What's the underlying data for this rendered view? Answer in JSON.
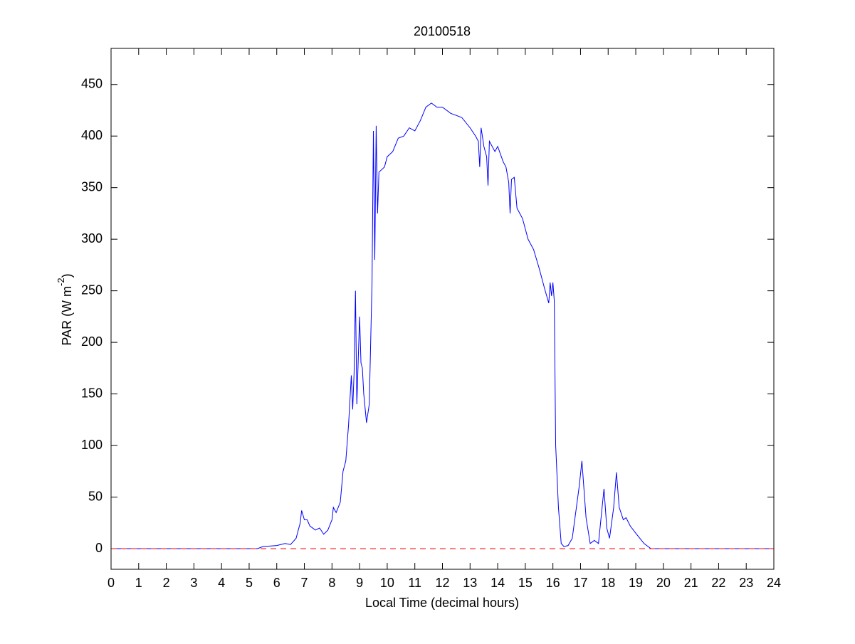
{
  "chart_data": {
    "type": "line",
    "title": "20100518",
    "xlabel": "Local Time (decimal hours)",
    "ylabel": [
      "PAR (W m",
      "-2",
      ")"
    ],
    "xlim": [
      0,
      24
    ],
    "ylim": [
      -20,
      485
    ],
    "xticks": [
      0,
      1,
      2,
      3,
      4,
      5,
      6,
      7,
      8,
      9,
      10,
      11,
      12,
      13,
      14,
      15,
      16,
      17,
      18,
      19,
      20,
      21,
      22,
      23,
      24
    ],
    "yticks": [
      0,
      50,
      100,
      150,
      200,
      250,
      300,
      350,
      400,
      450
    ],
    "box": true,
    "series": [
      {
        "color": "#0000ff",
        "dash": false,
        "x": [
          0,
          5.3,
          5.5,
          6,
          6.3,
          6.5,
          6.7,
          6.85,
          6.9,
          7.0,
          7.1,
          7.2,
          7.4,
          7.55,
          7.7,
          7.85,
          8.0,
          8.05,
          8.15,
          8.3,
          8.4,
          8.5,
          8.6,
          8.7,
          8.75,
          8.8,
          8.85,
          8.9,
          9.0,
          9.05,
          9.1,
          9.15,
          9.25,
          9.35,
          9.45,
          9.5,
          9.55,
          9.6,
          9.65,
          9.7,
          9.9,
          10.0,
          10.2,
          10.4,
          10.6,
          10.8,
          11.0,
          11.2,
          11.4,
          11.6,
          11.8,
          12.0,
          12.3,
          12.5,
          12.7,
          13.0,
          13.2,
          13.3,
          13.35,
          13.4,
          13.5,
          13.6,
          13.65,
          13.7,
          13.9,
          14.0,
          14.2,
          14.3,
          14.4,
          14.45,
          14.5,
          14.6,
          14.7,
          14.9,
          15.1,
          15.3,
          15.5,
          15.7,
          15.85,
          15.9,
          15.95,
          16.0,
          16.05,
          16.1,
          16.2,
          16.3,
          16.4,
          16.55,
          16.7,
          16.85,
          16.95,
          17.05,
          17.2,
          17.35,
          17.5,
          17.65,
          17.8,
          17.85,
          17.95,
          18.05,
          18.2,
          18.3,
          18.4,
          18.55,
          18.65,
          18.8,
          19.0,
          19.3,
          19.55,
          24
        ],
        "values": [
          0,
          0,
          2,
          3,
          5,
          4,
          10,
          25,
          37,
          28,
          28,
          22,
          18,
          20,
          14,
          18,
          28,
          40,
          35,
          45,
          75,
          85,
          120,
          168,
          135,
          170,
          250,
          140,
          225,
          180,
          175,
          150,
          122,
          140,
          258,
          405,
          280,
          410,
          325,
          365,
          370,
          380,
          385,
          398,
          400,
          408,
          405,
          415,
          428,
          432,
          428,
          428,
          422,
          420,
          418,
          408,
          400,
          395,
          370,
          408,
          390,
          380,
          352,
          395,
          385,
          390,
          375,
          370,
          355,
          325,
          358,
          360,
          330,
          320,
          300,
          290,
          272,
          252,
          238,
          258,
          245,
          258,
          240,
          100,
          40,
          5,
          2,
          3,
          10,
          40,
          60,
          85,
          30,
          5,
          8,
          5,
          45,
          58,
          20,
          10,
          40,
          74,
          40,
          28,
          30,
          22,
          15,
          5,
          0,
          0
        ]
      },
      {
        "color": "#ff0000",
        "dash": true,
        "x": [
          0,
          24
        ],
        "values": [
          0,
          0
        ]
      }
    ]
  }
}
